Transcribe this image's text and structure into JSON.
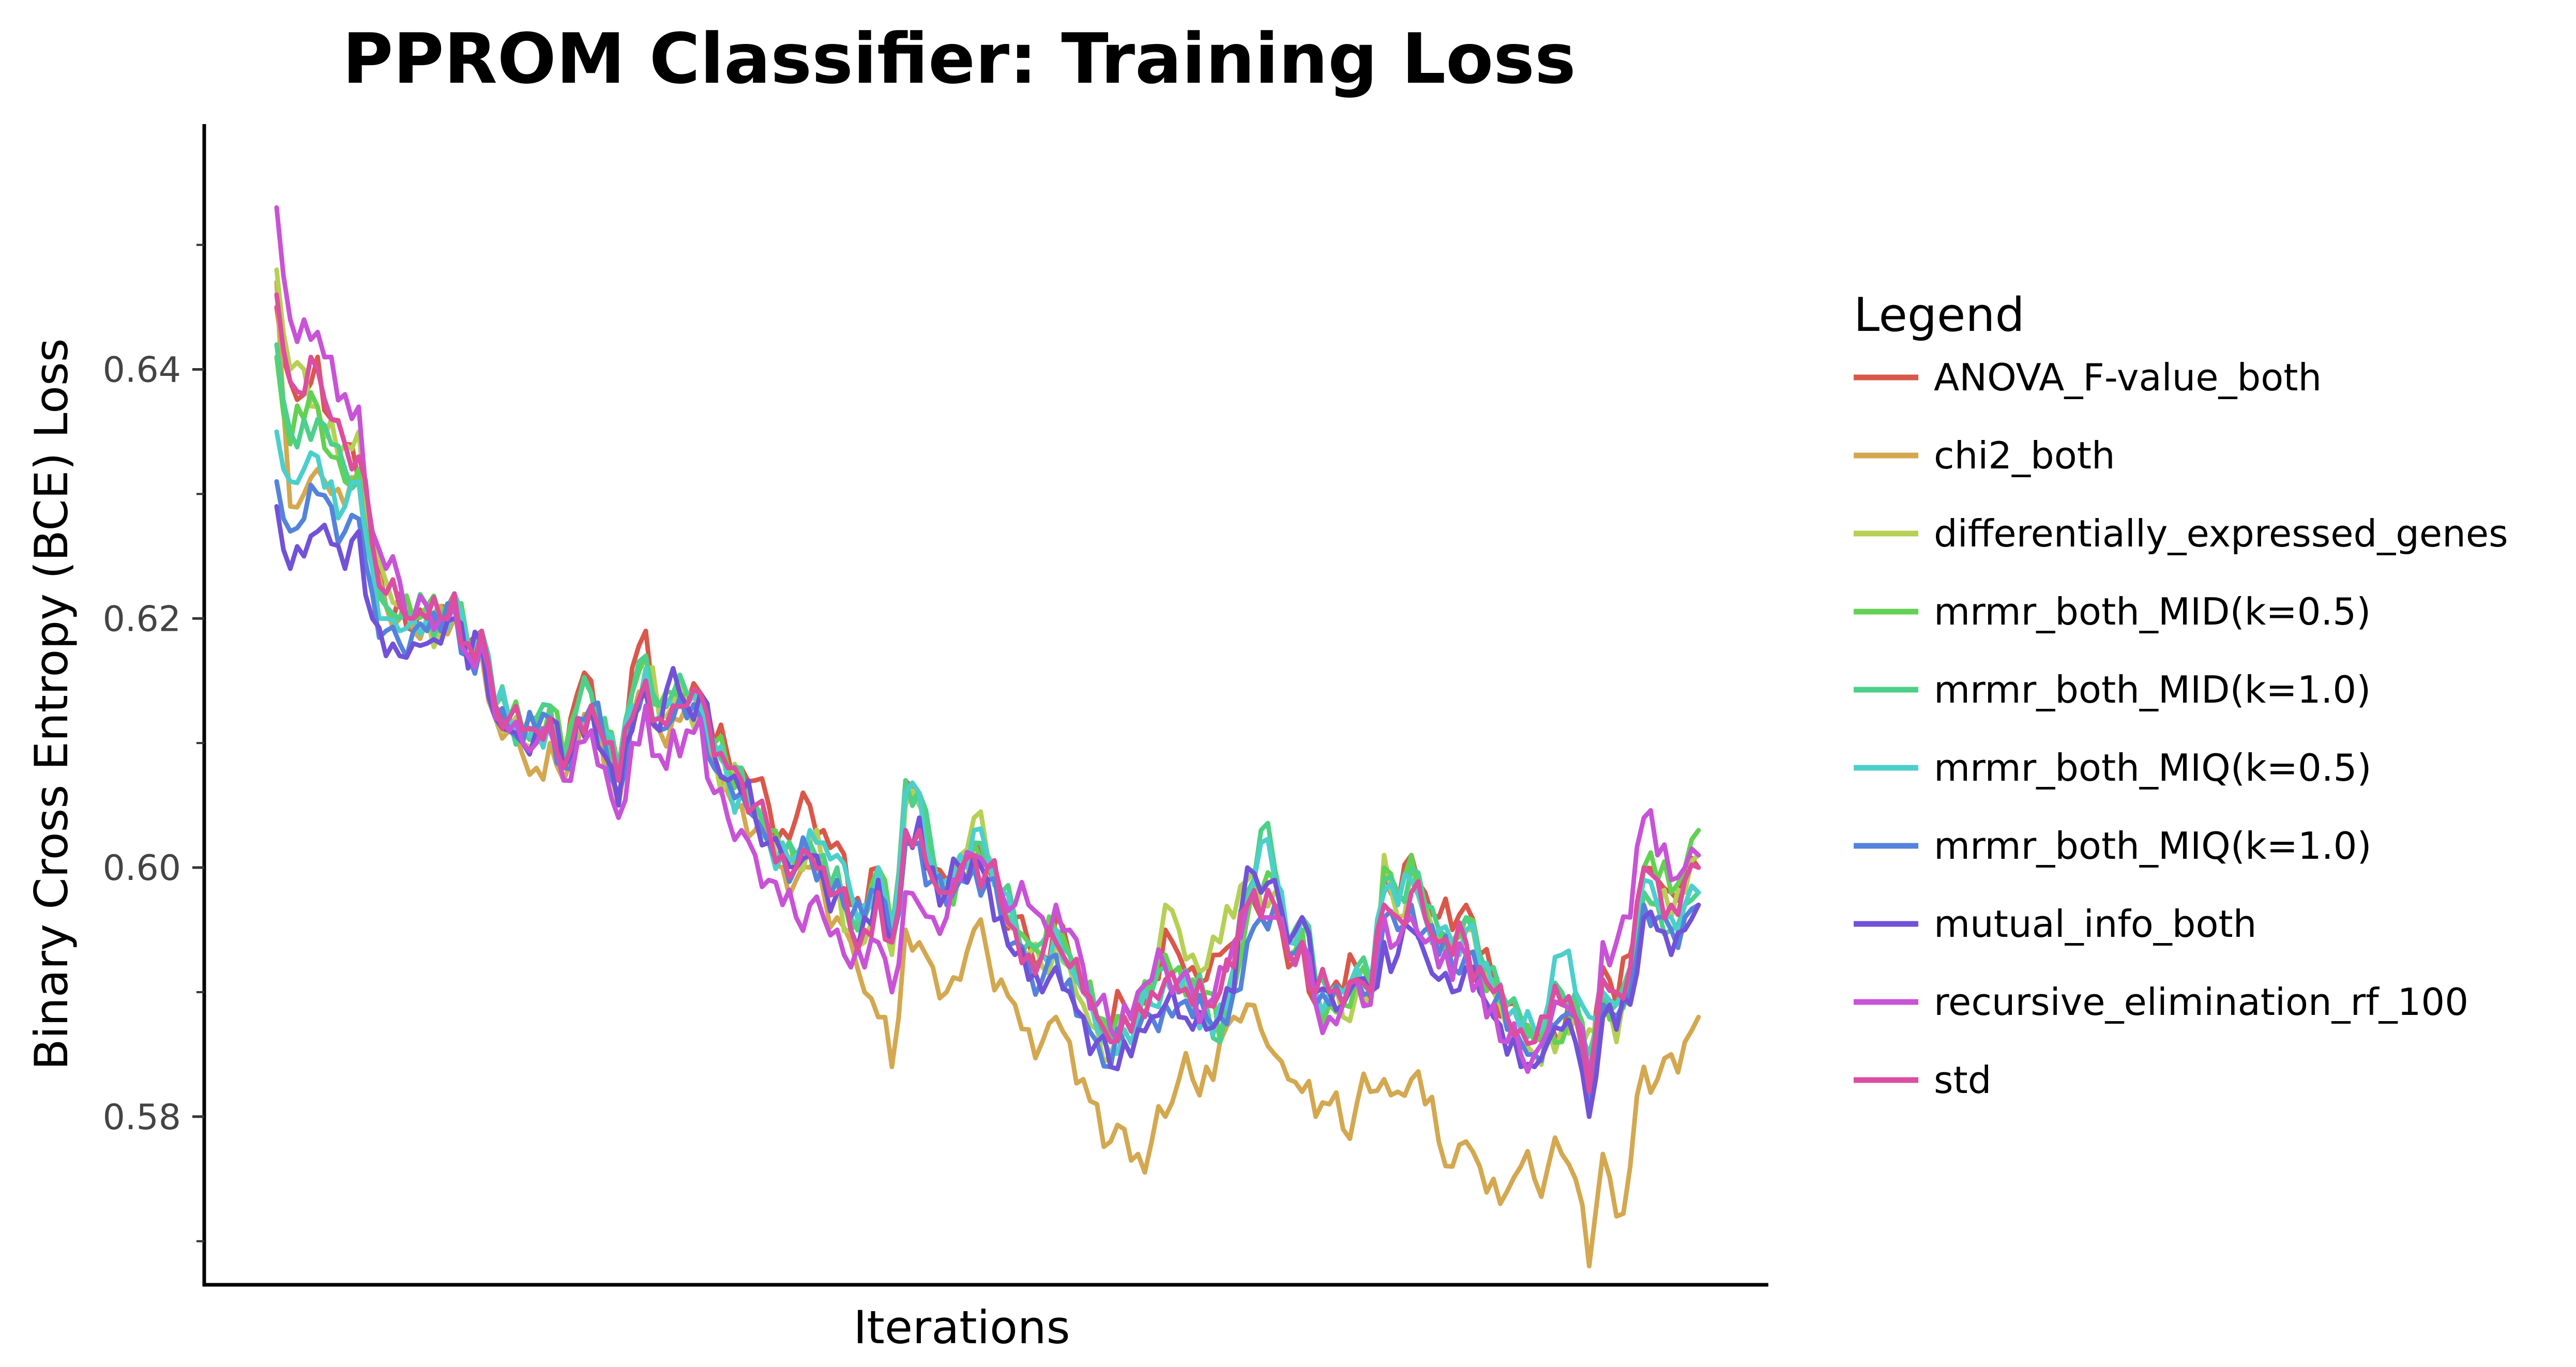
{
  "chart_data": {
    "type": "line",
    "title": "PPROM Classifier: Training Loss",
    "xlabel": "Iterations",
    "ylabel": "Binary Cross Entropy (BCE) Loss",
    "ylim": [
      0.5665,
      0.6597
    ],
    "yticks": [
      0.58,
      0.6,
      0.62,
      0.64
    ],
    "ytick_labels": [
      "0.58",
      "0.60",
      "0.62",
      "0.64"
    ],
    "xticks_shown": false,
    "grid": false,
    "legend": {
      "title": "Legend",
      "placement": "right"
    },
    "series": [
      {
        "name": "ANOVA_F-value_both",
        "color": "#D9584A",
        "seed": 11,
        "values": [
          0.645,
          0.639,
          0.638,
          0.641,
          0.636,
          0.634,
          0.631,
          0.625,
          0.621,
          0.622,
          0.619,
          0.62,
          0.621,
          0.622,
          0.618,
          0.619,
          0.613,
          0.612,
          0.611,
          0.61,
          0.612,
          0.608,
          0.614,
          0.615,
          0.611,
          0.608,
          0.616,
          0.619,
          0.613,
          0.614,
          0.613,
          0.614,
          0.61,
          0.609,
          0.608,
          0.607,
          0.605,
          0.603,
          0.604,
          0.605,
          0.603,
          0.602,
          0.597,
          0.596,
          0.6,
          0.595,
          0.607,
          0.606,
          0.6,
          0.599,
          0.601,
          0.602,
          0.6,
          0.598,
          0.596,
          0.594,
          0.593,
          0.596,
          0.593,
          0.59,
          0.588,
          0.587,
          0.589,
          0.59,
          0.591,
          0.595,
          0.593,
          0.592,
          0.591,
          0.593,
          0.594,
          0.598,
          0.596,
          0.597,
          0.592,
          0.594,
          0.589,
          0.59,
          0.59,
          0.592,
          0.59,
          0.6,
          0.597,
          0.601,
          0.598,
          0.596,
          0.595,
          0.597,
          0.593,
          0.591,
          0.589,
          0.588,
          0.587,
          0.588,
          0.586,
          0.589,
          0.581,
          0.592,
          0.589,
          0.593,
          0.6,
          0.599,
          0.598,
          0.6,
          0.6
        ]
      },
      {
        "name": "chi2_both",
        "color": "#D4A850",
        "seed": 23,
        "values": [
          0.647,
          0.629,
          0.63,
          0.632,
          0.63,
          0.629,
          0.631,
          0.624,
          0.621,
          0.62,
          0.619,
          0.62,
          0.621,
          0.62,
          0.618,
          0.617,
          0.612,
          0.611,
          0.609,
          0.608,
          0.61,
          0.607,
          0.61,
          0.612,
          0.608,
          0.605,
          0.612,
          0.614,
          0.611,
          0.612,
          0.613,
          0.612,
          0.608,
          0.606,
          0.605,
          0.603,
          0.602,
          0.6,
          0.599,
          0.6,
          0.598,
          0.596,
          0.594,
          0.59,
          0.588,
          0.584,
          0.595,
          0.594,
          0.592,
          0.59,
          0.591,
          0.595,
          0.593,
          0.591,
          0.589,
          0.587,
          0.586,
          0.588,
          0.586,
          0.583,
          0.581,
          0.578,
          0.579,
          0.577,
          0.578,
          0.58,
          0.583,
          0.583,
          0.584,
          0.586,
          0.588,
          0.589,
          0.587,
          0.585,
          0.583,
          0.582,
          0.58,
          0.581,
          0.579,
          0.581,
          0.582,
          0.583,
          0.582,
          0.583,
          0.581,
          0.578,
          0.576,
          0.578,
          0.576,
          0.575,
          0.574,
          0.576,
          0.575,
          0.576,
          0.577,
          0.575,
          0.568,
          0.577,
          0.572,
          0.576,
          0.584,
          0.583,
          0.585,
          0.586,
          0.588
        ]
      },
      {
        "name": "differentially_expressed_genes",
        "color": "#B5D055",
        "seed": 37,
        "values": [
          0.648,
          0.64,
          0.64,
          0.637,
          0.636,
          0.634,
          0.635,
          0.626,
          0.623,
          0.621,
          0.62,
          0.62,
          0.619,
          0.621,
          0.617,
          0.618,
          0.612,
          0.611,
          0.61,
          0.61,
          0.612,
          0.609,
          0.612,
          0.613,
          0.61,
          0.607,
          0.613,
          0.616,
          0.612,
          0.613,
          0.613,
          0.613,
          0.609,
          0.607,
          0.607,
          0.604,
          0.603,
          0.601,
          0.6,
          0.602,
          0.6,
          0.599,
          0.595,
          0.594,
          0.598,
          0.593,
          0.605,
          0.605,
          0.6,
          0.598,
          0.601,
          0.604,
          0.601,
          0.597,
          0.595,
          0.593,
          0.592,
          0.594,
          0.592,
          0.589,
          0.587,
          0.585,
          0.588,
          0.589,
          0.59,
          0.597,
          0.595,
          0.593,
          0.592,
          0.594,
          0.596,
          0.599,
          0.597,
          0.598,
          0.594,
          0.596,
          0.59,
          0.589,
          0.588,
          0.59,
          0.589,
          0.601,
          0.596,
          0.6,
          0.597,
          0.594,
          0.593,
          0.595,
          0.592,
          0.59,
          0.587,
          0.586,
          0.585,
          0.587,
          0.587,
          0.588,
          0.587,
          0.588,
          0.586,
          0.589,
          0.598,
          0.597,
          0.596,
          0.598,
          0.601
        ]
      },
      {
        "name": "mrmr_both_MID(k=0.5)",
        "color": "#62D154",
        "seed": 41,
        "values": [
          0.641,
          0.634,
          0.636,
          0.637,
          0.633,
          0.631,
          0.632,
          0.625,
          0.621,
          0.62,
          0.62,
          0.621,
          0.62,
          0.621,
          0.618,
          0.619,
          0.613,
          0.612,
          0.611,
          0.612,
          0.613,
          0.609,
          0.613,
          0.614,
          0.611,
          0.608,
          0.614,
          0.617,
          0.613,
          0.614,
          0.614,
          0.614,
          0.61,
          0.608,
          0.607,
          0.605,
          0.603,
          0.601,
          0.6,
          0.601,
          0.6,
          0.599,
          0.595,
          0.596,
          0.6,
          0.595,
          0.606,
          0.606,
          0.6,
          0.598,
          0.6,
          0.602,
          0.6,
          0.597,
          0.595,
          0.594,
          0.593,
          0.595,
          0.593,
          0.59,
          0.588,
          0.586,
          0.588,
          0.589,
          0.59,
          0.593,
          0.592,
          0.591,
          0.59,
          0.586,
          0.59,
          0.596,
          0.598,
          0.599,
          0.593,
          0.595,
          0.59,
          0.589,
          0.589,
          0.591,
          0.59,
          0.6,
          0.597,
          0.601,
          0.597,
          0.595,
          0.594,
          0.596,
          0.593,
          0.591,
          0.589,
          0.587,
          0.586,
          0.588,
          0.586,
          0.589,
          0.583,
          0.59,
          0.588,
          0.591,
          0.6,
          0.599,
          0.598,
          0.6,
          0.603
        ]
      },
      {
        "name": "mrmr_both_MID(k=1.0)",
        "color": "#4DD08A",
        "seed": 53,
        "values": [
          0.642,
          0.635,
          0.636,
          0.636,
          0.634,
          0.632,
          0.631,
          0.626,
          0.621,
          0.62,
          0.62,
          0.621,
          0.62,
          0.622,
          0.618,
          0.619,
          0.613,
          0.612,
          0.611,
          0.612,
          0.613,
          0.609,
          0.613,
          0.614,
          0.612,
          0.608,
          0.614,
          0.617,
          0.613,
          0.614,
          0.614,
          0.614,
          0.61,
          0.608,
          0.608,
          0.605,
          0.603,
          0.601,
          0.601,
          0.602,
          0.601,
          0.6,
          0.596,
          0.596,
          0.6,
          0.595,
          0.607,
          0.606,
          0.601,
          0.598,
          0.6,
          0.602,
          0.6,
          0.598,
          0.596,
          0.594,
          0.594,
          0.595,
          0.593,
          0.591,
          0.588,
          0.586,
          0.588,
          0.589,
          0.59,
          0.592,
          0.591,
          0.59,
          0.589,
          0.586,
          0.592,
          0.598,
          0.603,
          0.6,
          0.594,
          0.596,
          0.591,
          0.59,
          0.59,
          0.592,
          0.591,
          0.599,
          0.598,
          0.6,
          0.597,
          0.595,
          0.594,
          0.596,
          0.593,
          0.592,
          0.589,
          0.588,
          0.587,
          0.589,
          0.59,
          0.59,
          0.585,
          0.59,
          0.589,
          0.592,
          0.598,
          0.597,
          0.595,
          0.597,
          0.598
        ]
      },
      {
        "name": "mrmr_both_MIQ(k=0.5)",
        "color": "#4CCFCB",
        "seed": 67,
        "values": [
          0.635,
          0.631,
          0.632,
          0.633,
          0.631,
          0.629,
          0.631,
          0.624,
          0.62,
          0.619,
          0.62,
          0.62,
          0.62,
          0.622,
          0.618,
          0.619,
          0.613,
          0.612,
          0.611,
          0.611,
          0.612,
          0.608,
          0.612,
          0.613,
          0.611,
          0.607,
          0.613,
          0.616,
          0.612,
          0.613,
          0.613,
          0.613,
          0.609,
          0.607,
          0.606,
          0.604,
          0.602,
          0.602,
          0.601,
          0.603,
          0.602,
          0.601,
          0.598,
          0.597,
          0.6,
          0.595,
          0.606,
          0.606,
          0.6,
          0.599,
          0.601,
          0.603,
          0.601,
          0.598,
          0.595,
          0.593,
          0.593,
          0.595,
          0.592,
          0.59,
          0.587,
          0.585,
          0.587,
          0.588,
          0.589,
          0.591,
          0.59,
          0.589,
          0.588,
          0.589,
          0.592,
          0.597,
          0.602,
          0.599,
          0.594,
          0.596,
          0.59,
          0.59,
          0.59,
          0.592,
          0.59,
          0.598,
          0.597,
          0.599,
          0.596,
          0.595,
          0.594,
          0.595,
          0.592,
          0.59,
          0.588,
          0.587,
          0.587,
          0.589,
          0.593,
          0.59,
          0.588,
          0.59,
          0.589,
          0.592,
          0.599,
          0.597,
          0.596,
          0.597,
          0.598
        ]
      },
      {
        "name": "mrmr_both_MIQ(k=1.0)",
        "color": "#5483DC",
        "seed": 79,
        "values": [
          0.631,
          0.627,
          0.628,
          0.63,
          0.629,
          0.627,
          0.628,
          0.622,
          0.619,
          0.618,
          0.619,
          0.619,
          0.619,
          0.621,
          0.617,
          0.618,
          0.612,
          0.611,
          0.61,
          0.611,
          0.612,
          0.608,
          0.612,
          0.613,
          0.61,
          0.606,
          0.612,
          0.615,
          0.611,
          0.612,
          0.612,
          0.612,
          0.608,
          0.607,
          0.606,
          0.604,
          0.602,
          0.601,
          0.6,
          0.601,
          0.6,
          0.599,
          0.596,
          0.596,
          0.598,
          0.594,
          0.602,
          0.602,
          0.599,
          0.597,
          0.599,
          0.6,
          0.599,
          0.596,
          0.594,
          0.592,
          0.591,
          0.593,
          0.591,
          0.588,
          0.586,
          0.584,
          0.586,
          0.587,
          0.588,
          0.589,
          0.589,
          0.588,
          0.588,
          0.588,
          0.59,
          0.594,
          0.596,
          0.597,
          0.593,
          0.594,
          0.589,
          0.589,
          0.589,
          0.591,
          0.59,
          0.596,
          0.595,
          0.597,
          0.595,
          0.593,
          0.592,
          0.593,
          0.591,
          0.589,
          0.587,
          0.586,
          0.585,
          0.587,
          0.588,
          0.588,
          0.58,
          0.589,
          0.588,
          0.59,
          0.597,
          0.596,
          0.595,
          0.596,
          0.597
        ]
      },
      {
        "name": "mutual_info_both",
        "color": "#7152D8",
        "seed": 83,
        "values": [
          0.629,
          0.624,
          0.625,
          0.627,
          0.626,
          0.624,
          0.627,
          0.62,
          0.617,
          0.617,
          0.618,
          0.618,
          0.618,
          0.62,
          0.616,
          0.618,
          0.612,
          0.611,
          0.61,
          0.611,
          0.612,
          0.608,
          0.612,
          0.613,
          0.609,
          0.605,
          0.611,
          0.614,
          0.611,
          0.616,
          0.613,
          0.614,
          0.609,
          0.607,
          0.606,
          0.604,
          0.602,
          0.601,
          0.6,
          0.601,
          0.599,
          0.598,
          0.595,
          0.596,
          0.599,
          0.594,
          0.603,
          0.604,
          0.6,
          0.598,
          0.6,
          0.601,
          0.599,
          0.596,
          0.593,
          0.591,
          0.59,
          0.592,
          0.59,
          0.588,
          0.586,
          0.584,
          0.586,
          0.587,
          0.588,
          0.589,
          0.588,
          0.587,
          0.587,
          0.588,
          0.59,
          0.6,
          0.598,
          0.599,
          0.594,
          0.596,
          0.59,
          0.59,
          0.589,
          0.591,
          0.59,
          0.594,
          0.593,
          0.595,
          0.593,
          0.591,
          0.59,
          0.592,
          0.59,
          0.588,
          0.585,
          0.584,
          0.584,
          0.586,
          0.587,
          0.586,
          0.58,
          0.588,
          0.587,
          0.589,
          0.596,
          0.595,
          0.593,
          0.595,
          0.597
        ]
      },
      {
        "name": "recursive_elimination_rf_100",
        "color": "#C853D6",
        "seed": 97,
        "values": [
          0.653,
          0.644,
          0.644,
          0.643,
          0.641,
          0.638,
          0.637,
          0.627,
          0.624,
          0.623,
          0.62,
          0.621,
          0.62,
          0.621,
          0.617,
          0.618,
          0.612,
          0.611,
          0.61,
          0.61,
          0.611,
          0.607,
          0.61,
          0.611,
          0.608,
          0.604,
          0.61,
          0.613,
          0.609,
          0.611,
          0.611,
          0.612,
          0.606,
          0.604,
          0.603,
          0.601,
          0.599,
          0.597,
          0.596,
          0.597,
          0.596,
          0.595,
          0.592,
          0.592,
          0.594,
          0.59,
          0.598,
          0.597,
          0.596,
          0.596,
          0.599,
          0.601,
          0.6,
          0.598,
          0.597,
          0.597,
          0.596,
          0.597,
          0.595,
          0.592,
          0.589,
          0.587,
          0.589,
          0.59,
          0.591,
          0.592,
          0.591,
          0.59,
          0.589,
          0.592,
          0.594,
          0.597,
          0.596,
          0.596,
          0.593,
          0.594,
          0.589,
          0.588,
          0.589,
          0.591,
          0.589,
          0.596,
          0.594,
          0.596,
          0.594,
          0.592,
          0.591,
          0.593,
          0.591,
          0.589,
          0.586,
          0.585,
          0.585,
          0.587,
          0.589,
          0.588,
          0.583,
          0.594,
          0.594,
          0.596,
          0.604,
          0.601,
          0.599,
          0.6,
          0.601
        ]
      },
      {
        "name": "std",
        "color": "#DC4E9F",
        "seed": 101,
        "values": [
          0.646,
          0.639,
          0.638,
          0.64,
          0.636,
          0.634,
          0.633,
          0.626,
          0.622,
          0.621,
          0.62,
          0.62,
          0.62,
          0.622,
          0.618,
          0.619,
          0.613,
          0.612,
          0.611,
          0.611,
          0.612,
          0.608,
          0.612,
          0.613,
          0.61,
          0.607,
          0.612,
          0.615,
          0.612,
          0.613,
          0.613,
          0.614,
          0.609,
          0.608,
          0.607,
          0.605,
          0.603,
          0.601,
          0.6,
          0.601,
          0.6,
          0.598,
          0.595,
          0.595,
          0.598,
          0.594,
          0.603,
          0.603,
          0.599,
          0.598,
          0.6,
          0.601,
          0.6,
          0.597,
          0.595,
          0.593,
          0.593,
          0.594,
          0.592,
          0.59,
          0.588,
          0.586,
          0.588,
          0.589,
          0.59,
          0.591,
          0.59,
          0.589,
          0.589,
          0.59,
          0.592,
          0.597,
          0.596,
          0.597,
          0.593,
          0.594,
          0.59,
          0.59,
          0.589,
          0.591,
          0.59,
          0.597,
          0.596,
          0.598,
          0.596,
          0.594,
          0.593,
          0.594,
          0.592,
          0.59,
          0.588,
          0.587,
          0.586,
          0.588,
          0.589,
          0.588,
          0.582,
          0.591,
          0.59,
          0.592,
          0.6,
          0.599,
          0.597,
          0.599,
          0.6
        ]
      }
    ]
  }
}
